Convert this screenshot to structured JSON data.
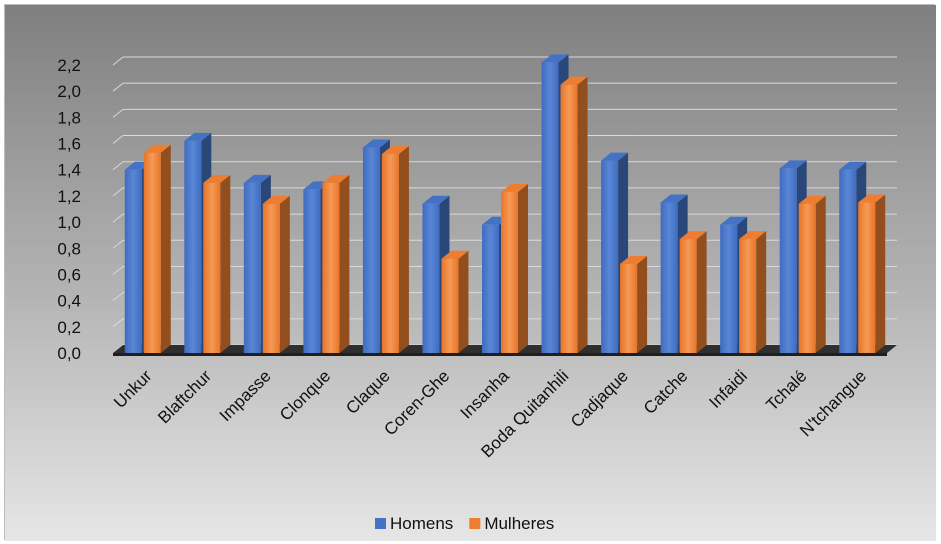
{
  "chart_data": {
    "type": "bar",
    "style": "3d-clustered-column",
    "categories": [
      "Unkur",
      "Blaftchur",
      "Impasse",
      "Clonque",
      "Claque",
      "Coren-Ghe",
      "Insanha",
      "Boda Quitanhili",
      "Cadjaque",
      "Catche",
      "Infaidi",
      "Tchalé",
      "N'tchangue"
    ],
    "series": [
      {
        "name": "Homens",
        "color": "#4472C4",
        "values": [
          1.4,
          1.62,
          1.3,
          1.25,
          1.57,
          1.14,
          0.98,
          2.22,
          1.47,
          1.15,
          0.98,
          1.41,
          1.4
        ]
      },
      {
        "name": "Mulheres",
        "color": "#ED7D31",
        "values": [
          1.53,
          1.3,
          1.14,
          1.3,
          1.52,
          0.72,
          1.23,
          2.05,
          0.68,
          0.87,
          0.87,
          1.14,
          1.15
        ]
      }
    ],
    "y_ticks": [
      "0,0",
      "0,2",
      "0,4",
      "0,6",
      "0,8",
      "1,0",
      "1,2",
      "1,4",
      "1,6",
      "1,8",
      "2,0",
      "2,2"
    ],
    "ylim": [
      0,
      2.2
    ],
    "grid": true,
    "legend_position": "bottom",
    "background": "gradient-gray"
  }
}
